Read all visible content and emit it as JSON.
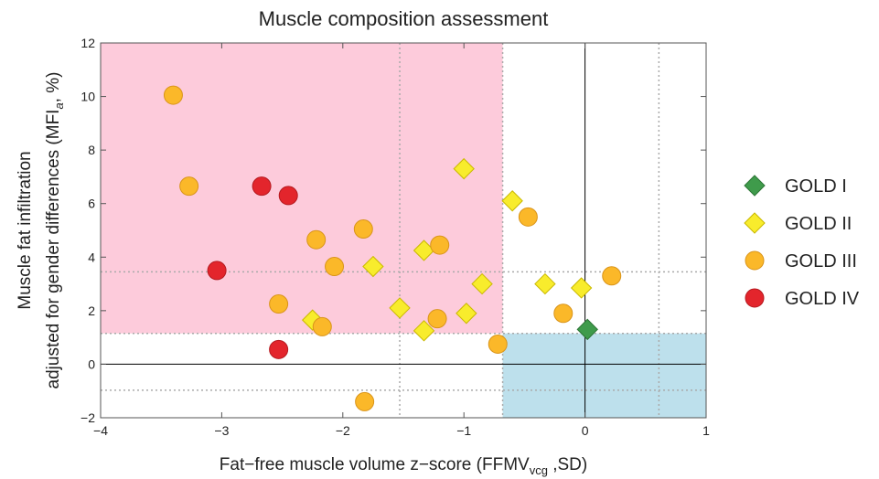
{
  "chart_data": {
    "type": "scatter",
    "title": "Muscle composition assessment",
    "x_label": {
      "text": "Fat−free muscle volume z−score (FFMV",
      "subscript": "vcg",
      "suffix": " ,SD)"
    },
    "y_label": {
      "line1": "Muscle fat infiltration",
      "line2": "adjusted for gender differences (MFI",
      "subscript": "a",
      "suffix": ", %)"
    },
    "xlim": [
      -4,
      1
    ],
    "ylim": [
      -2,
      12
    ],
    "xticks": [
      {
        "value": -4,
        "label": "−4"
      },
      {
        "value": -3,
        "label": "−3"
      },
      {
        "value": -2,
        "label": "−2"
      },
      {
        "value": -1,
        "label": "−1"
      },
      0,
      1
    ],
    "yticks": [
      {
        "value": -2,
        "label": "−2"
      },
      0,
      2,
      4,
      6,
      8,
      10,
      12
    ],
    "shaded_regions": [
      {
        "xlim": [
          -4,
          -0.68
        ],
        "ylim": [
          1.15,
          12
        ],
        "color": "#fdcbdb"
      },
      {
        "xlim": [
          -0.68,
          1
        ],
        "ylim": [
          -2,
          1.15
        ],
        "color": "#bde0ec"
      }
    ],
    "dotted_x_lines": [
      -1.53,
      -0.68,
      0.61
    ],
    "dotted_y_lines": [
      3.45,
      1.15,
      -0.97
    ],
    "solid_x_lines": [
      0
    ],
    "solid_y_lines": [
      0
    ],
    "series": [
      {
        "name": "GOLD I",
        "color": "#3f9b4b",
        "marker": "diamond",
        "x": [
          0.02
        ],
        "y": [
          1.3
        ]
      },
      {
        "name": "GOLD II",
        "color": "#f8ec2c",
        "marker": "diamond",
        "x": [
          -1.0,
          -0.6,
          -1.75,
          -1.33,
          -0.85,
          -0.33,
          -0.03,
          -1.53,
          -2.25,
          -1.33,
          -0.98
        ],
        "y": [
          7.3,
          6.1,
          3.65,
          4.25,
          3.0,
          3.0,
          2.85,
          2.1,
          1.65,
          1.25,
          1.9
        ]
      },
      {
        "name": "GOLD III",
        "color": "#fbb829",
        "marker": "circle",
        "x": [
          -3.4,
          -3.27,
          -2.22,
          -2.07,
          -1.83,
          -1.2,
          -0.47,
          0.22,
          -2.53,
          -2.17,
          -1.22,
          -0.18,
          -0.72,
          -1.82
        ],
        "y": [
          10.05,
          6.65,
          4.65,
          3.65,
          5.05,
          4.45,
          5.5,
          3.3,
          2.25,
          1.4,
          1.7,
          1.9,
          0.75,
          -1.4
        ]
      },
      {
        "name": "GOLD IV",
        "color": "#e3252c",
        "marker": "circle",
        "x": [
          -2.67,
          -2.45,
          -3.04,
          -2.53
        ],
        "y": [
          6.65,
          6.3,
          3.5,
          0.55
        ]
      }
    ]
  }
}
